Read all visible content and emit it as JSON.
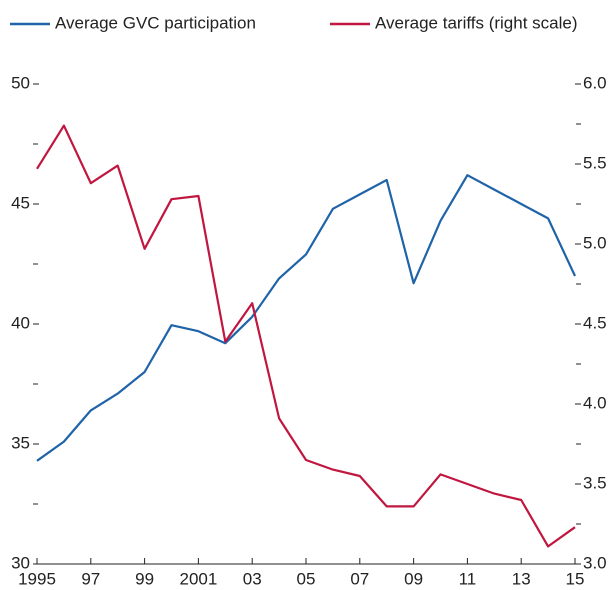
{
  "chart_data": {
    "type": "line",
    "x": [
      1995,
      1996,
      1997,
      1998,
      1999,
      2000,
      2001,
      2002,
      2003,
      2004,
      2005,
      2006,
      2007,
      2008,
      2009,
      2010,
      2011,
      2012,
      2013,
      2014,
      2015
    ],
    "series": [
      {
        "name": "Average GVC participation",
        "color": "#1f63a8",
        "values": [
          34.3,
          35.1,
          36.4,
          37.1,
          38.0,
          39.95,
          39.7,
          39.2,
          40.3,
          41.9,
          42.9,
          44.8,
          45.4,
          46.0,
          41.7,
          44.3,
          46.2,
          45.6,
          45.0,
          44.4,
          42.0
        ]
      },
      {
        "name": "Average tariffs (right scale)",
        "color": "#c0163f",
        "axis": "y2",
        "values": [
          5.47,
          5.74,
          5.38,
          5.49,
          4.97,
          5.28,
          5.3,
          4.39,
          4.63,
          3.91,
          3.65,
          3.59,
          3.55,
          3.36,
          3.36,
          3.56,
          3.5,
          3.44,
          3.4,
          3.11,
          3.23
        ]
      }
    ],
    "xlim": [
      1995,
      2015
    ],
    "xticks": [
      {
        "value": 1995,
        "label": "1995"
      },
      {
        "value": 1997,
        "label": "97"
      },
      {
        "value": 1999,
        "label": "99"
      },
      {
        "value": 2001,
        "label": "2001"
      },
      {
        "value": 2003,
        "label": "03"
      },
      {
        "value": 2005,
        "label": "05"
      },
      {
        "value": 2007,
        "label": "07"
      },
      {
        "value": 2009,
        "label": "09"
      },
      {
        "value": 2011,
        "label": "11"
      },
      {
        "value": 2013,
        "label": "13"
      },
      {
        "value": 2015,
        "label": "15"
      }
    ],
    "ylim": [
      30,
      50
    ],
    "yticks": [
      30,
      35,
      40,
      45,
      50
    ],
    "yminor_ticks": [
      32.5,
      37.5,
      42.5,
      47.5
    ],
    "y2lim": [
      3.0,
      6.0
    ],
    "y2ticks": [
      {
        "value": 3.0,
        "label": "3.0"
      },
      {
        "value": 3.5,
        "label": "3.5"
      },
      {
        "value": 4.0,
        "label": "4.0"
      },
      {
        "value": 4.5,
        "label": "4.5"
      },
      {
        "value": 5.0,
        "label": "5.0"
      },
      {
        "value": 5.5,
        "label": "5.5"
      },
      {
        "value": 6.0,
        "label": "6.0"
      }
    ],
    "y2minor_ticks": [
      3.25,
      3.75,
      4.25,
      4.75,
      5.25,
      5.75
    ],
    "legend": "top"
  }
}
